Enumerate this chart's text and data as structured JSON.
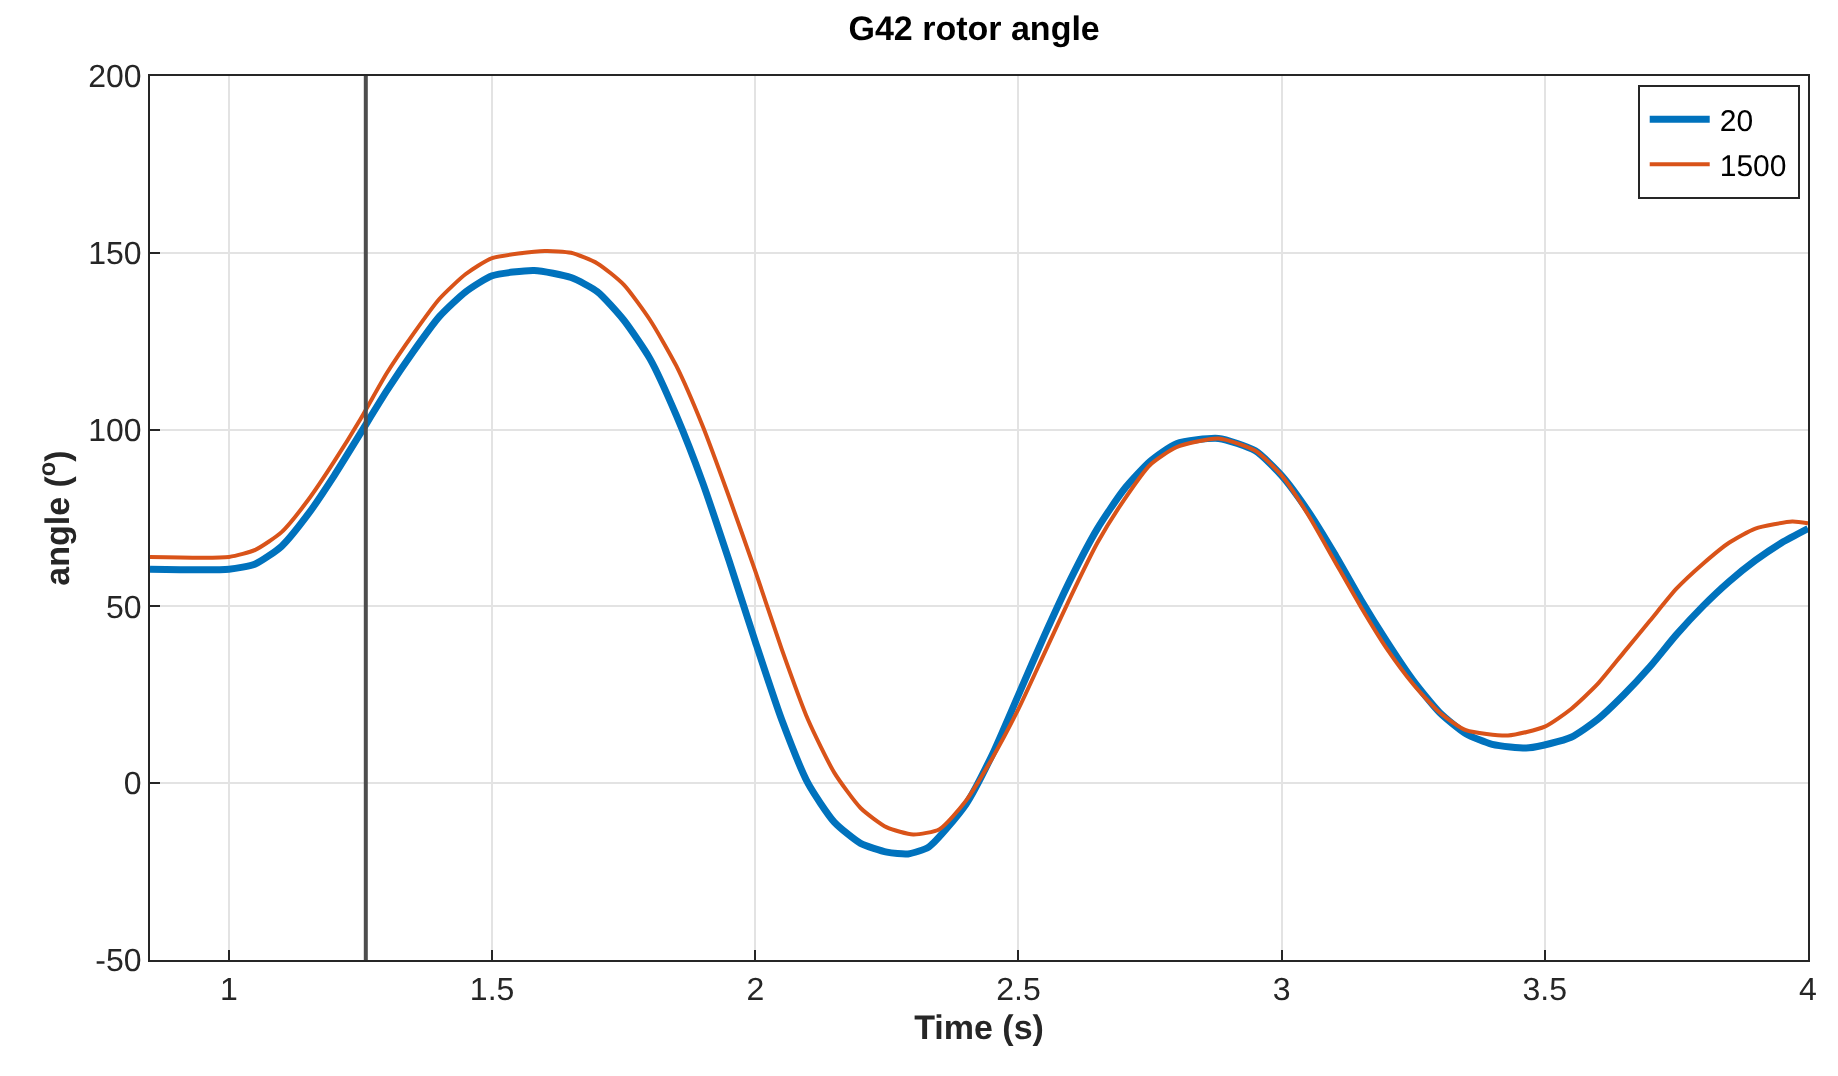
{
  "chart_data": {
    "type": "line",
    "title": "G42 rotor angle",
    "xlabel": "Time (s)",
    "ylabel": "angle ($^{o}$)",
    "xlim": [
      0.85,
      4
    ],
    "xticks": [
      1,
      1.5,
      2,
      2.5,
      3,
      3.5,
      4
    ],
    "ylim": [
      -50,
      200
    ],
    "yticks": [
      -50,
      0,
      50,
      100,
      150,
      200
    ],
    "grid": true,
    "legend": "top right",
    "line_style": "solid",
    "marker": "none",
    "ref_lines": [
      {
        "axis": "x",
        "value": 1.26,
        "label": null,
        "color": "#4d4d4d"
      }
    ],
    "series": [
      {
        "name": "20",
        "color": "#0072bd",
        "x": [
          0.85,
          1.0,
          1.05,
          1.1,
          1.15,
          1.2,
          1.25,
          1.3,
          1.35,
          1.4,
          1.45,
          1.5,
          1.58,
          1.65,
          1.7,
          1.75,
          1.8,
          1.85,
          1.9,
          1.95,
          2.0,
          2.05,
          2.1,
          2.15,
          2.2,
          2.25,
          2.29,
          2.33,
          2.4,
          2.45,
          2.5,
          2.55,
          2.6,
          2.65,
          2.7,
          2.75,
          2.8,
          2.88,
          2.95,
          3.0,
          3.05,
          3.1,
          3.15,
          3.2,
          3.25,
          3.3,
          3.35,
          3.4,
          3.47,
          3.55,
          3.6,
          3.65,
          3.7,
          3.75,
          3.8,
          3.85,
          3.9,
          3.95,
          4.0
        ],
        "values": [
          60.5,
          60.5,
          62,
          67,
          76,
          87,
          99,
          111,
          122,
          132,
          139,
          143.5,
          145,
          143,
          139,
          131,
          120,
          104,
          85,
          63,
          40,
          18,
          0,
          -11,
          -17,
          -19.5,
          -20,
          -18,
          -6,
          8,
          25,
          42,
          58,
          72,
          83,
          91,
          96,
          97.5,
          94,
          87,
          77,
          65,
          52,
          40,
          29,
          20,
          14,
          11,
          10,
          13,
          18,
          25,
          33,
          42,
          50,
          57,
          63,
          68,
          72
        ]
      },
      {
        "name": "1500",
        "color": "#d95319",
        "x": [
          0.85,
          1.0,
          1.05,
          1.1,
          1.15,
          1.2,
          1.25,
          1.3,
          1.35,
          1.4,
          1.45,
          1.5,
          1.6,
          1.65,
          1.7,
          1.75,
          1.8,
          1.85,
          1.9,
          1.95,
          2.0,
          2.05,
          2.1,
          2.15,
          2.2,
          2.25,
          2.3,
          2.35,
          2.4,
          2.45,
          2.5,
          2.55,
          2.6,
          2.65,
          2.7,
          2.75,
          2.8,
          2.88,
          2.95,
          3.0,
          3.05,
          3.1,
          3.15,
          3.2,
          3.25,
          3.3,
          3.35,
          3.43,
          3.5,
          3.55,
          3.6,
          3.65,
          3.7,
          3.75,
          3.8,
          3.85,
          3.9,
          3.97,
          4.0
        ],
        "values": [
          64,
          64,
          66,
          71,
          80,
          91,
          103,
          116,
          127,
          137,
          144,
          148.5,
          150.5,
          150,
          147,
          141,
          131,
          118,
          101,
          81,
          60,
          38,
          18,
          3,
          -7,
          -12.5,
          -14.5,
          -13,
          -5,
          7,
          21,
          37,
          53,
          68,
          80,
          90,
          95,
          97.5,
          94,
          87,
          76,
          63,
          50,
          38,
          28,
          20,
          15,
          13.5,
          16,
          21,
          28,
          37,
          46,
          55,
          62,
          68,
          72,
          74,
          73.5
        ]
      }
    ]
  }
}
